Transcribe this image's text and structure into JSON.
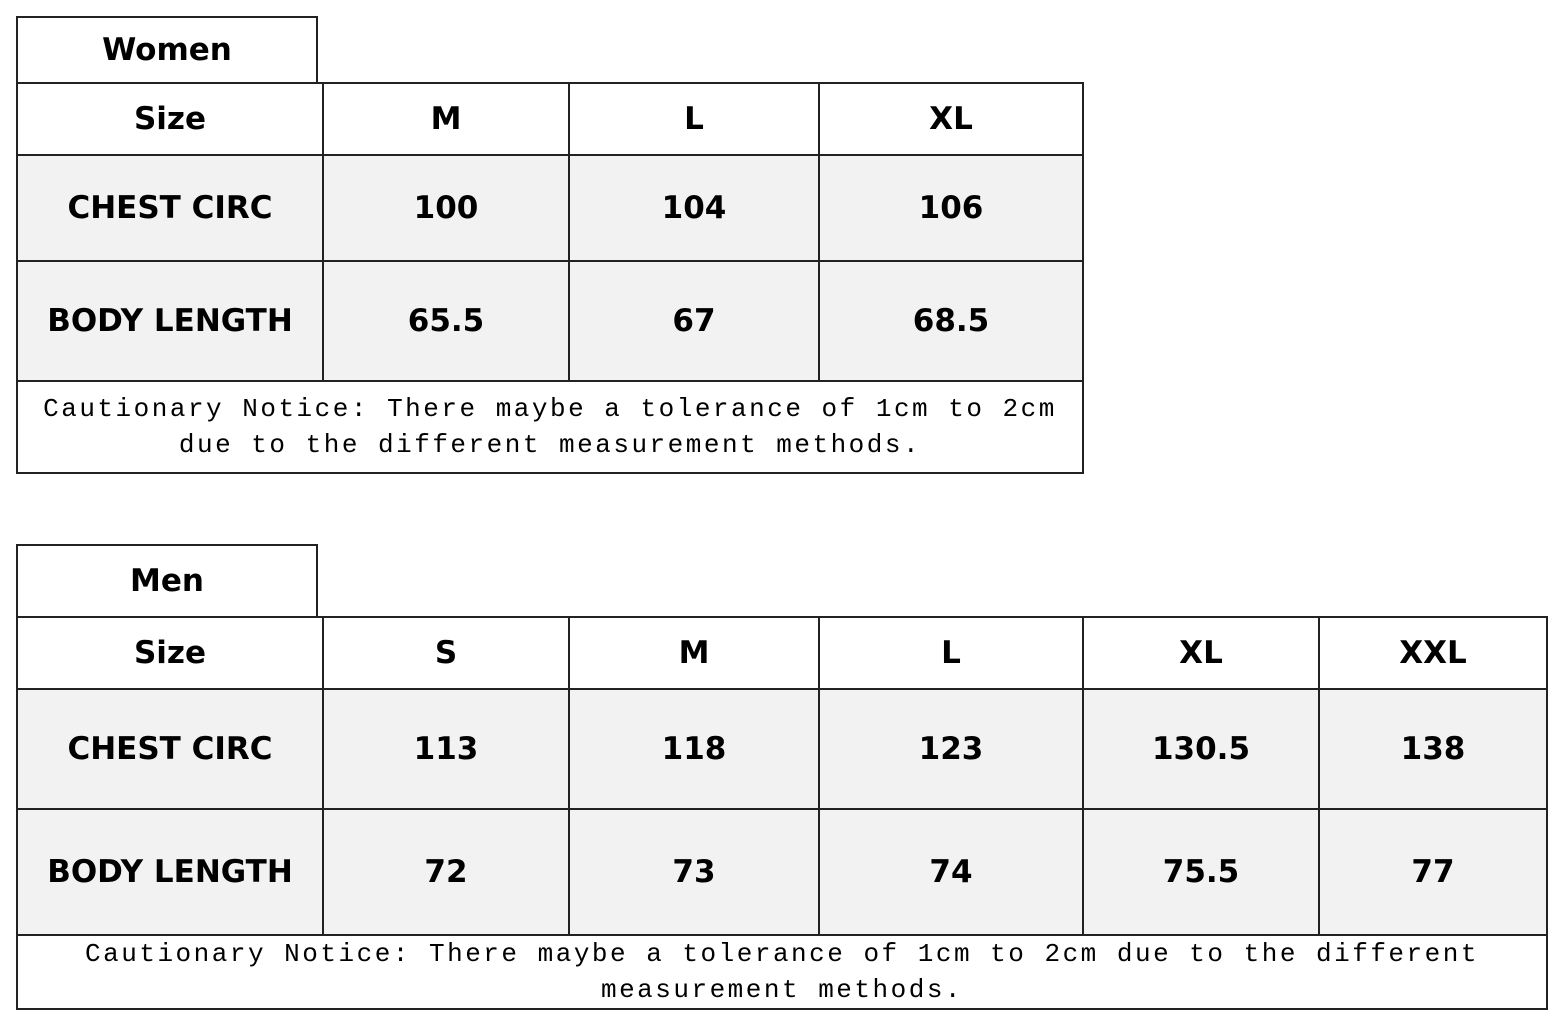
{
  "women": {
    "title": "Women",
    "header": [
      "Size",
      "M",
      "L",
      "XL"
    ],
    "rows": [
      [
        "CHEST CIRC",
        "100",
        "104",
        "106"
      ],
      [
        "BODY LENGTH",
        "65.5",
        "67",
        "68.5"
      ]
    ],
    "notice": "Cautionary Notice: There maybe a tolerance of 1cm to 2cm due to the different measurement methods."
  },
  "men": {
    "title": "Men",
    "header": [
      "Size",
      "S",
      "M",
      "L",
      "XL",
      "XXL"
    ],
    "rows": [
      [
        "CHEST CIRC",
        "113",
        "118",
        "123",
        "130.5",
        "138"
      ],
      [
        "BODY LENGTH",
        "72",
        "73",
        "74",
        "75.5",
        "77"
      ]
    ],
    "notice": "Cautionary Notice: There maybe a tolerance of 1cm to 2cm due to the different measurement methods."
  },
  "colors": {
    "row_fill": "#f2f2f2",
    "border": "#222222"
  }
}
